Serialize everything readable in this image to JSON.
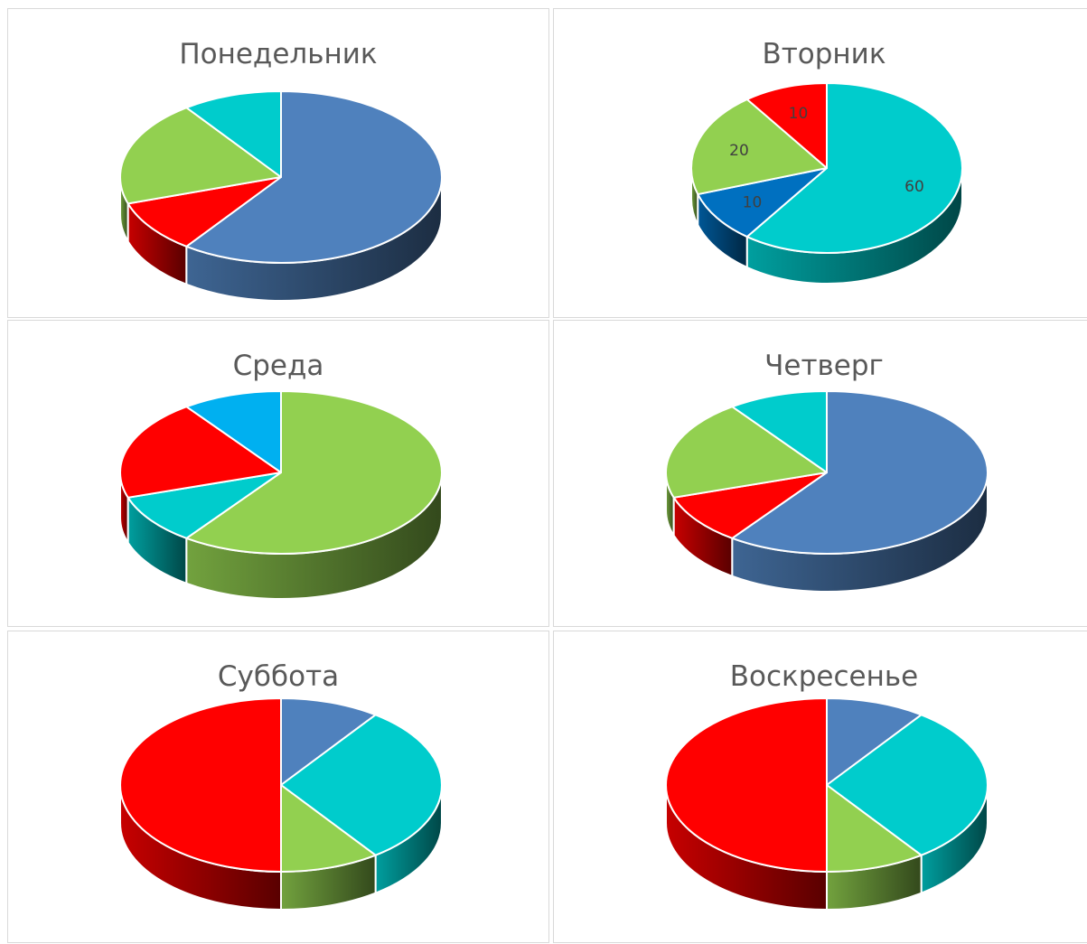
{
  "chart_data": [
    {
      "type": "pie",
      "title": "Понедельник",
      "categories": [
        "",
        "",
        "",
        ""
      ],
      "values": [
        60,
        10,
        20,
        10
      ],
      "colors": [
        "#4f81bd",
        "#ff0000",
        "#92d050",
        "#00cccc"
      ],
      "data_labels": []
    },
    {
      "type": "pie",
      "title": "Вторник",
      "categories": [
        "",
        "",
        "",
        ""
      ],
      "values": [
        60,
        10,
        20,
        10
      ],
      "colors": [
        "#00cccc",
        "#0070c0",
        "#92d050",
        "#ff0000"
      ],
      "data_labels": [
        "60",
        "10",
        "20",
        "10"
      ]
    },
    {
      "type": "pie",
      "title": "Среда",
      "categories": [
        "",
        "",
        "",
        ""
      ],
      "values": [
        60,
        10,
        20,
        10
      ],
      "colors": [
        "#92d050",
        "#00cccc",
        "#ff0000",
        "#00b0f0"
      ],
      "data_labels": []
    },
    {
      "type": "pie",
      "title": "Четверг",
      "categories": [
        "",
        "",
        "",
        ""
      ],
      "values": [
        60,
        10,
        20,
        10
      ],
      "colors": [
        "#4f81bd",
        "#ff0000",
        "#92d050",
        "#00cccc"
      ],
      "data_labels": []
    },
    {
      "type": "pie",
      "title": "Суббота",
      "categories": [
        "",
        "",
        "",
        ""
      ],
      "values": [
        10,
        30,
        10,
        50
      ],
      "colors": [
        "#4f81bd",
        "#00cccc",
        "#92d050",
        "#ff0000"
      ],
      "data_labels": []
    },
    {
      "type": "pie",
      "title": "Воскресенье",
      "categories": [
        "",
        "",
        "",
        ""
      ],
      "values": [
        10,
        30,
        10,
        50
      ],
      "colors": [
        "#4f81bd",
        "#00cccc",
        "#92d050",
        "#ff0000"
      ],
      "data_labels": []
    }
  ]
}
